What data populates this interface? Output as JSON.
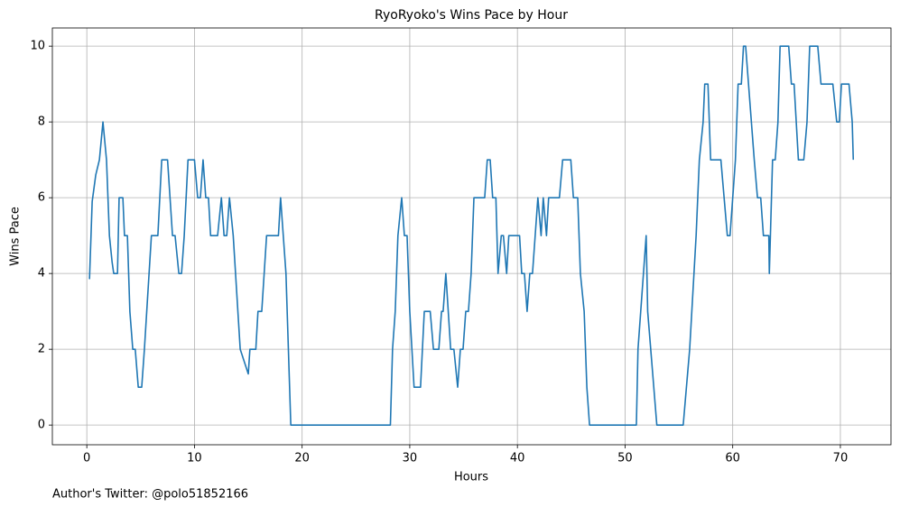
{
  "chart_data": {
    "type": "line",
    "title": "RyoRyoko's Wins Pace by Hour",
    "x_label": "Hours",
    "y_label": "Wins Pace",
    "annotation": "Author's Twitter: @polo51852166",
    "xlim": [
      -3.2,
      74.7
    ],
    "ylim": [
      -0.52,
      10.48
    ],
    "xticks": [
      0,
      10,
      20,
      30,
      40,
      50,
      60,
      70
    ],
    "yticks": [
      0,
      2,
      4,
      6,
      8,
      10
    ],
    "grid": true,
    "series": [
      {
        "color": "#1f77b4",
        "x": [
          0.25,
          0.5,
          0.83,
          1.17,
          1.5,
          1.83,
          2.1,
          2.35,
          2.5,
          2.85,
          3.0,
          3.35,
          3.5,
          3.77,
          4.0,
          4.27,
          4.5,
          4.78,
          5.1,
          5.35,
          6.0,
          6.6,
          6.96,
          7.5,
          7.96,
          8.2,
          8.55,
          8.8,
          9.05,
          9.4,
          10,
          10.3,
          10.55,
          10.8,
          11.05,
          11.3,
          11.5,
          12.15,
          12.5,
          12.75,
          13,
          13.25,
          13.6,
          14.25,
          15,
          15.15,
          15.7,
          15.9,
          16.25,
          16.7,
          17.8,
          18.0,
          18.5,
          18.95,
          28.2,
          28.4,
          28.65,
          28.9,
          29.25,
          29.5,
          29.75,
          30,
          30.4,
          31,
          31.35,
          31.9,
          32.2,
          32.7,
          32.95,
          33.1,
          33.35,
          33.8,
          34.1,
          34.45,
          34.7,
          34.95,
          35.2,
          35.45,
          35.7,
          35.96,
          36.96,
          37.2,
          37.47,
          37.7,
          38,
          38.2,
          38.5,
          38.7,
          39,
          39.2,
          40.2,
          40.4,
          40.65,
          40.9,
          41.15,
          41.4,
          41.9,
          42.2,
          42.4,
          42.7,
          42.9,
          43.9,
          44.2,
          44.96,
          45.2,
          45.6,
          45.85,
          46.2,
          46.45,
          46.7,
          51.05,
          51.2,
          51.96,
          52.1,
          52.95,
          55.4,
          56,
          56.6,
          56.9,
          57.25,
          57.4,
          57.7,
          57.95,
          58.9,
          59.5,
          59.75,
          60.25,
          60.5,
          60.8,
          61,
          61.2,
          62,
          62.3,
          62.6,
          62.85,
          63.35,
          63.4,
          63.7,
          63.95,
          64.2,
          64.4,
          65.2,
          65.45,
          65.7,
          66.1,
          66.6,
          66.9,
          67.15,
          67.9,
          68.2,
          69.3,
          69.66,
          69.9,
          70.1,
          70.8,
          71.1,
          71.2
        ],
        "values": [
          3.85,
          5.9,
          6.6,
          7,
          8,
          7,
          5,
          4.3,
          4,
          4,
          6,
          6,
          5,
          5,
          3,
          2,
          2,
          1,
          1,
          2,
          5,
          5,
          7,
          7,
          5,
          5,
          4,
          4,
          5,
          7,
          7,
          6,
          6,
          7,
          6,
          6,
          5,
          5,
          6,
          5,
          5,
          6,
          5,
          2,
          1.35,
          2,
          2,
          3,
          3,
          5,
          5,
          6,
          4,
          0,
          0,
          2,
          3,
          5,
          6,
          5,
          5,
          3,
          1,
          1,
          3,
          3,
          2,
          2,
          3,
          3,
          4,
          2,
          2,
          1,
          2,
          2,
          3,
          3,
          4,
          6,
          6,
          7,
          7,
          6,
          6,
          4,
          5,
          5,
          4,
          5,
          5,
          4,
          4,
          3,
          4,
          4,
          6,
          5,
          6,
          5,
          6,
          6,
          7,
          7,
          6,
          6,
          4,
          3,
          1,
          0,
          0,
          2,
          5,
          3,
          0,
          0,
          2,
          5,
          7,
          8,
          9,
          9,
          7,
          7,
          5,
          5,
          7,
          9,
          9,
          10,
          10,
          7,
          6,
          6,
          5,
          5,
          4,
          7,
          7,
          8,
          10,
          10,
          9,
          9,
          7,
          7,
          8,
          10,
          10,
          9,
          9,
          8,
          8,
          9,
          9,
          8,
          7
        ]
      }
    ]
  }
}
